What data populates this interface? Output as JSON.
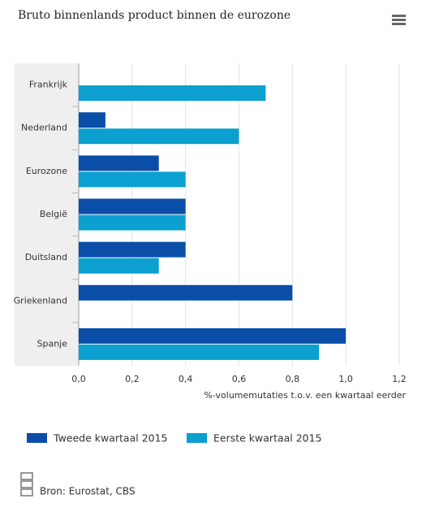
{
  "chart_data": {
    "type": "hbar",
    "title": "Bruto binnenlands product binnen de eurozone",
    "categories": [
      "Frankrijk",
      "Nederland",
      "Eurozone",
      "België",
      "Duitsland",
      "Griekenland",
      "Spanje"
    ],
    "series": [
      {
        "name": "Tweede kwartaal 2015",
        "color": "#0b4ea8",
        "values": [
          0,
          0.1,
          0.3,
          0.4,
          0.4,
          0.8,
          1.0
        ]
      },
      {
        "name": "Eerste kwartaal 2015",
        "color": "#0ba0cf",
        "values": [
          0.7,
          0.6,
          0.4,
          0.4,
          0.3,
          0,
          0.9
        ]
      }
    ],
    "xlim": [
      0,
      1.2
    ],
    "xticks": [
      {
        "value": 0,
        "label": "0,0"
      },
      {
        "value": 0.2,
        "label": "0,2"
      },
      {
        "value": 0.4,
        "label": "0,4"
      },
      {
        "value": 0.6,
        "label": "0,6"
      },
      {
        "value": 0.8,
        "label": "0,8"
      },
      {
        "value": 1.0,
        "label": "1,0"
      },
      {
        "value": 1.2,
        "label": "1,2"
      }
    ],
    "xlabel": "%-volumemutaties t.o.v. een kwartaal eerder",
    "grid": true,
    "source": "Bron: Eurostat, CBS"
  }
}
